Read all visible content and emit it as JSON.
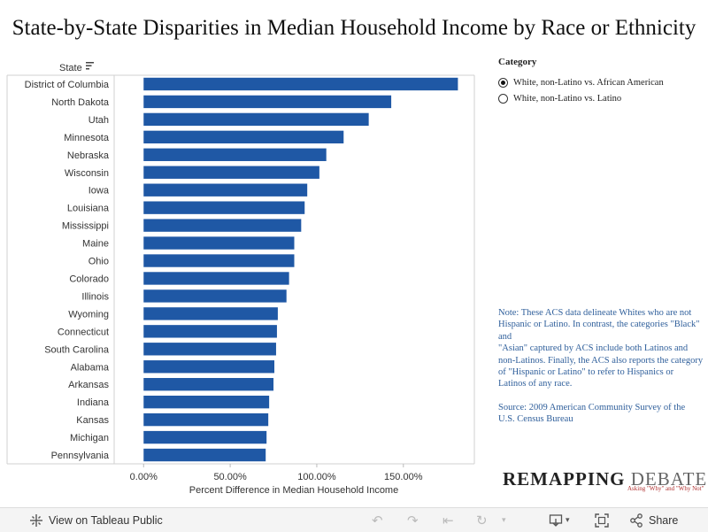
{
  "title": "State-by-State Disparities in Median Household Income by Race or Ethnicity",
  "chart_data": {
    "type": "bar",
    "orientation": "horizontal",
    "title": "State-by-State Disparities in Median Household Income by Race or Ethnicity",
    "ylabel": "State",
    "xlabel": "Percent Difference in Median Household Income",
    "categories": [
      "District of Columbia",
      "North Dakota",
      "Utah",
      "Minnesota",
      "Nebraska",
      "Wisconsin",
      "Iowa",
      "Louisiana",
      "Mississippi",
      "Maine",
      "Ohio",
      "Colorado",
      "Illinois",
      "Wyoming",
      "Connecticut",
      "South Carolina",
      "Alabama",
      "Arkansas",
      "Indiana",
      "Kansas",
      "Michigan",
      "Pennsylvania"
    ],
    "values": [
      181.5,
      143,
      130,
      115.5,
      105.5,
      101.5,
      94.5,
      93,
      91,
      87,
      87,
      84,
      82.5,
      77.5,
      77,
      76.5,
      75.5,
      75,
      72.5,
      72,
      71,
      70.5
    ],
    "xlim": [
      -17,
      191
    ],
    "xticks": [
      0,
      50,
      100,
      150
    ],
    "tick_labels": [
      "0.00%",
      "50.00%",
      "100.00%",
      "150.00%"
    ],
    "grid": false,
    "bar_color": "#1f58a5",
    "sort_icon": "sort-descending-icon"
  },
  "legend": {
    "title": "Category",
    "items": [
      {
        "label": "White, non-Latino vs. African American",
        "selected": true
      },
      {
        "label": "White, non-Latino vs. Latino",
        "selected": false
      }
    ]
  },
  "note": {
    "text1": "Note: These ACS data delineate Whites who are not Hispanic or Latino. In contrast, the categories \"Black\" and",
    "text2": "\"Asian\" captured by ACS include both Latinos and non-Latinos. Finally, the ACS also reports the category of \"Hispanic or Latino\" to refer to Hispanics or Latinos of any race.",
    "source": "Source: 2009 American Community Survey of the U.S. Census Bureau"
  },
  "logo": {
    "part1": "REMAPPING",
    "part2": "DEBATE",
    "tagline": "Asking \"Why\" and \"Why Not\""
  },
  "toolbar": {
    "view_label": "View on Tableau Public",
    "share_label": "Share",
    "icons": [
      "tableau-icon",
      "undo-icon",
      "redo-icon",
      "revert-icon",
      "refresh-icon",
      "download-icon",
      "fullscreen-icon",
      "share-icon"
    ]
  }
}
